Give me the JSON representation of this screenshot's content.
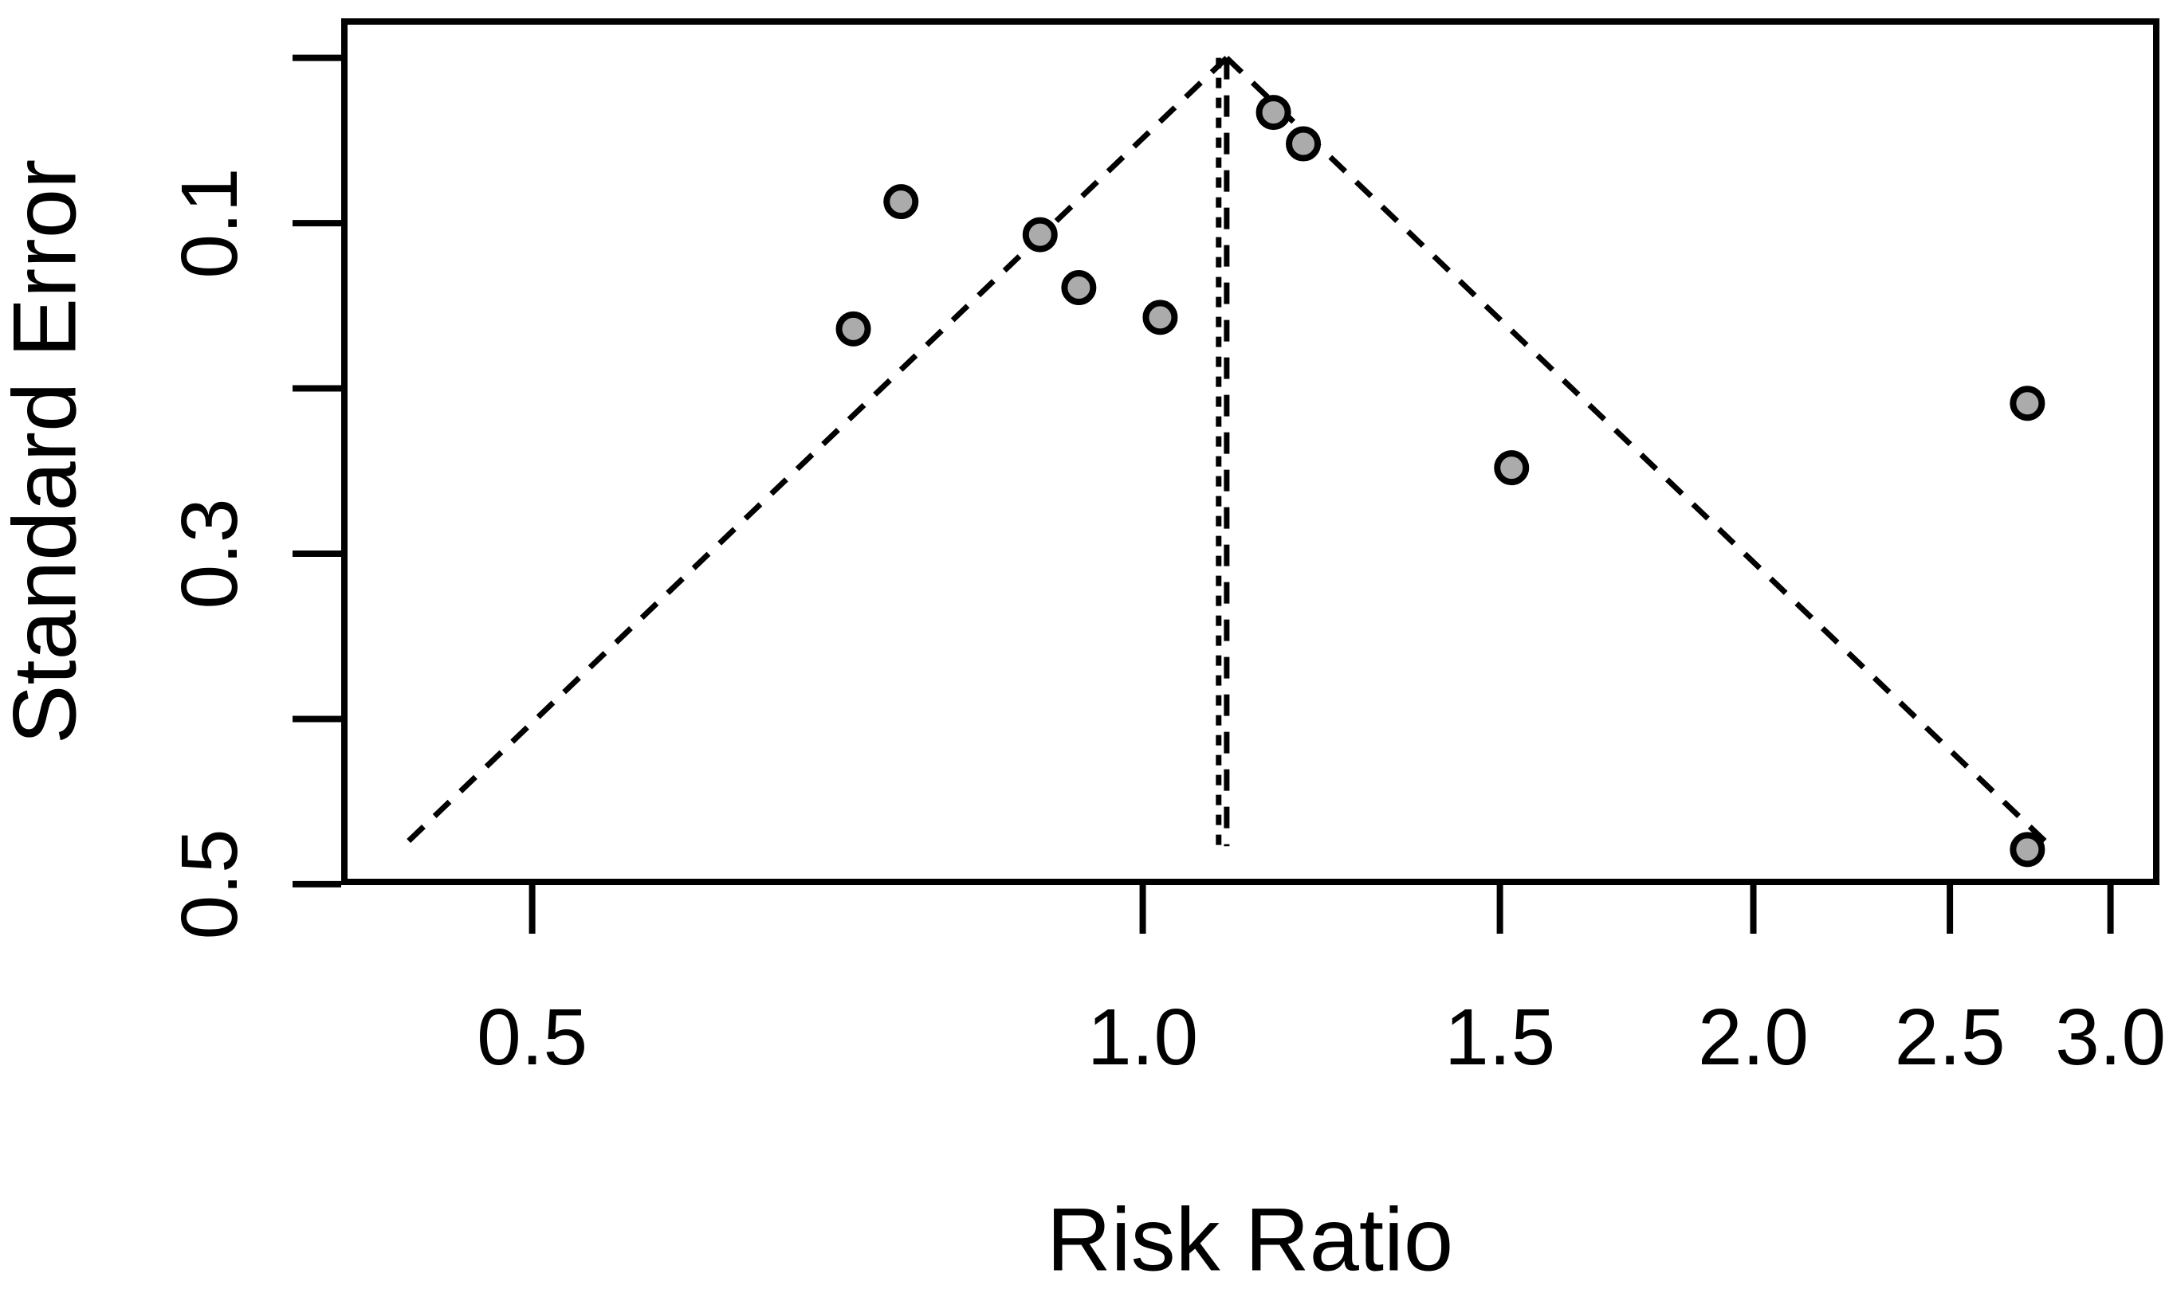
{
  "chart_data": {
    "type": "scatter",
    "title": "",
    "xlabel": "Risk Ratio",
    "ylabel": "Standard Error",
    "x_scale": "log",
    "y_axis_inverted": true,
    "xlim": [
      0.404,
      3.16
    ],
    "ylim": [
      -0.022,
      0.4986
    ],
    "x_ticks": [
      0.5,
      1.0,
      1.5,
      2.0,
      2.5,
      3.0
    ],
    "x_tick_labels": [
      "0.5",
      "1.0",
      "1.5",
      "2.0",
      "2.5",
      "3.0"
    ],
    "y_ticks": [
      0.0,
      0.1,
      0.2,
      0.3,
      0.4,
      0.5
    ],
    "y_tick_labels": [
      "",
      "0.1",
      "",
      "0.3",
      "",
      "0.5"
    ],
    "grid": false,
    "legend": false,
    "points": [
      {
        "risk_ratio": 0.76,
        "standard_error": 0.087
      },
      {
        "risk_ratio": 0.72,
        "standard_error": 0.164
      },
      {
        "risk_ratio": 0.89,
        "standard_error": 0.107
      },
      {
        "risk_ratio": 0.93,
        "standard_error": 0.139
      },
      {
        "risk_ratio": 1.02,
        "standard_error": 0.157
      },
      {
        "risk_ratio": 1.16,
        "standard_error": 0.033
      },
      {
        "risk_ratio": 1.2,
        "standard_error": 0.052
      },
      {
        "risk_ratio": 1.52,
        "standard_error": 0.248
      },
      {
        "risk_ratio": 2.73,
        "standard_error": 0.209
      },
      {
        "risk_ratio": 2.73,
        "standard_error": 0.479
      }
    ],
    "funnel": {
      "center_risk_ratio": 1.1,
      "z_value": 1.96,
      "se_top": 0.0,
      "se_bottom": 0.48,
      "style": "dashed"
    },
    "reference_lines": [
      {
        "risk_ratio": 1.09,
        "style": "dotted",
        "se_top": 0.0,
        "se_bottom": 0.477
      },
      {
        "risk_ratio": 1.1,
        "style": "dashed",
        "se_top": 0.0,
        "se_bottom": 0.477
      }
    ],
    "styles": {
      "point_fill": "#ababab",
      "point_stroke": "#000000",
      "line_color": "#000000",
      "background": "#ffffff"
    }
  }
}
